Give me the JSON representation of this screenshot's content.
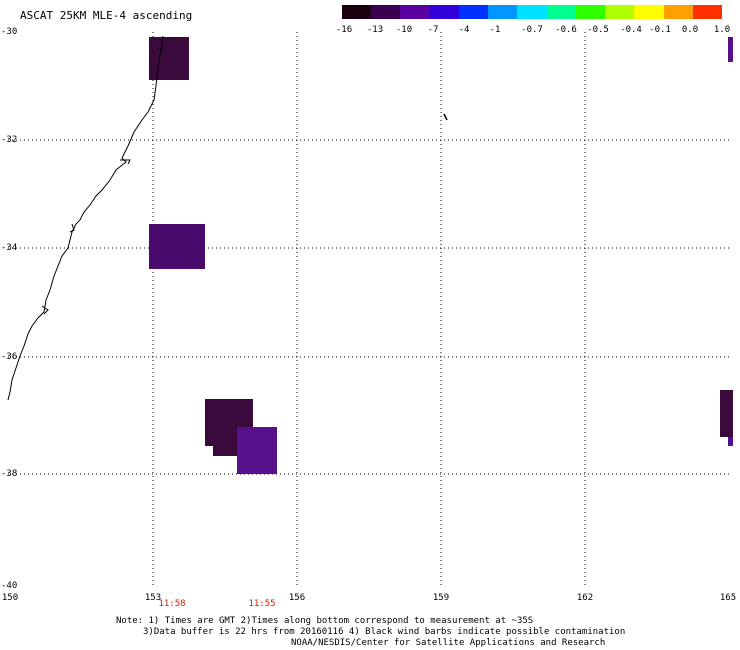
{
  "title": "ASCAT 25KM MLE-4 ascending",
  "colorbar": {
    "labels": [
      "-16",
      "-13",
      "-10",
      "-7",
      "-4",
      "-1",
      "-0.7",
      "-0.6",
      "-0.5",
      "-0.4",
      "-0.1",
      "0.0",
      "1.0"
    ],
    "colors": [
      "#1a0010",
      "#3a0050",
      "#5a00a0",
      "#2f00d8",
      "#0030ff",
      "#0096ff",
      "#00e0ff",
      "#00ff90",
      "#30ff00",
      "#b0ff00",
      "#ffff00",
      "#ffa000",
      "#ff3000"
    ]
  },
  "map": {
    "lat_labels": [
      "-30",
      "-32",
      "-34",
      "-36",
      "-38",
      "-40"
    ],
    "lon_labels": [
      "150",
      "153",
      "156",
      "159",
      "162",
      "165"
    ],
    "time_labels": [
      "11:58",
      "11:55"
    ],
    "swath_colors": {
      "dark": "#3a0a3c",
      "mid": "#460a5a",
      "purple": "#55108a"
    }
  },
  "notes": [
    "Note: 1) Times are GMT 2)Times along bottom correspond to measurement at ~35S",
    "3)Data buffer is 22 hrs from 20160116 4) Black wind barbs indicate possible contamination",
    "NOAA/NESDIS/Center for Satellite Applications and Research"
  ]
}
